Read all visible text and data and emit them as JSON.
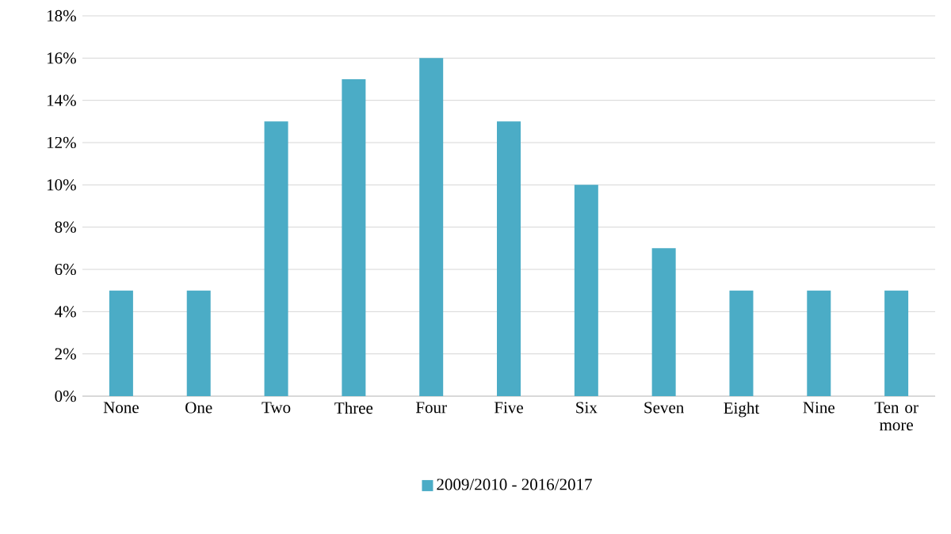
{
  "chart_data": {
    "type": "bar",
    "categories": [
      "None",
      "One",
      "Two",
      "Three",
      "Four",
      "Five",
      "Six",
      "Seven",
      "Eight",
      "Nine",
      "Ten or more"
    ],
    "series": [
      {
        "name": "2009/2010 - 2016/2017",
        "color": "#4bacc6",
        "values": [
          5,
          5,
          13,
          15,
          16,
          13,
          10,
          7,
          5,
          5,
          5
        ]
      }
    ],
    "ylim": [
      0,
      18
    ],
    "yticks": [
      {
        "value": 0,
        "label": "0%"
      },
      {
        "value": 2,
        "label": "2%"
      },
      {
        "value": 4,
        "label": "4%"
      },
      {
        "value": 6,
        "label": "6%"
      },
      {
        "value": 8,
        "label": "8%"
      },
      {
        "value": 10,
        "label": "10%"
      },
      {
        "value": 12,
        "label": "12%"
      },
      {
        "value": 14,
        "label": "14%"
      },
      {
        "value": 16,
        "label": "16%"
      },
      {
        "value": 18,
        "label": "18%"
      }
    ],
    "grid": "y",
    "legend": "bottom"
  }
}
